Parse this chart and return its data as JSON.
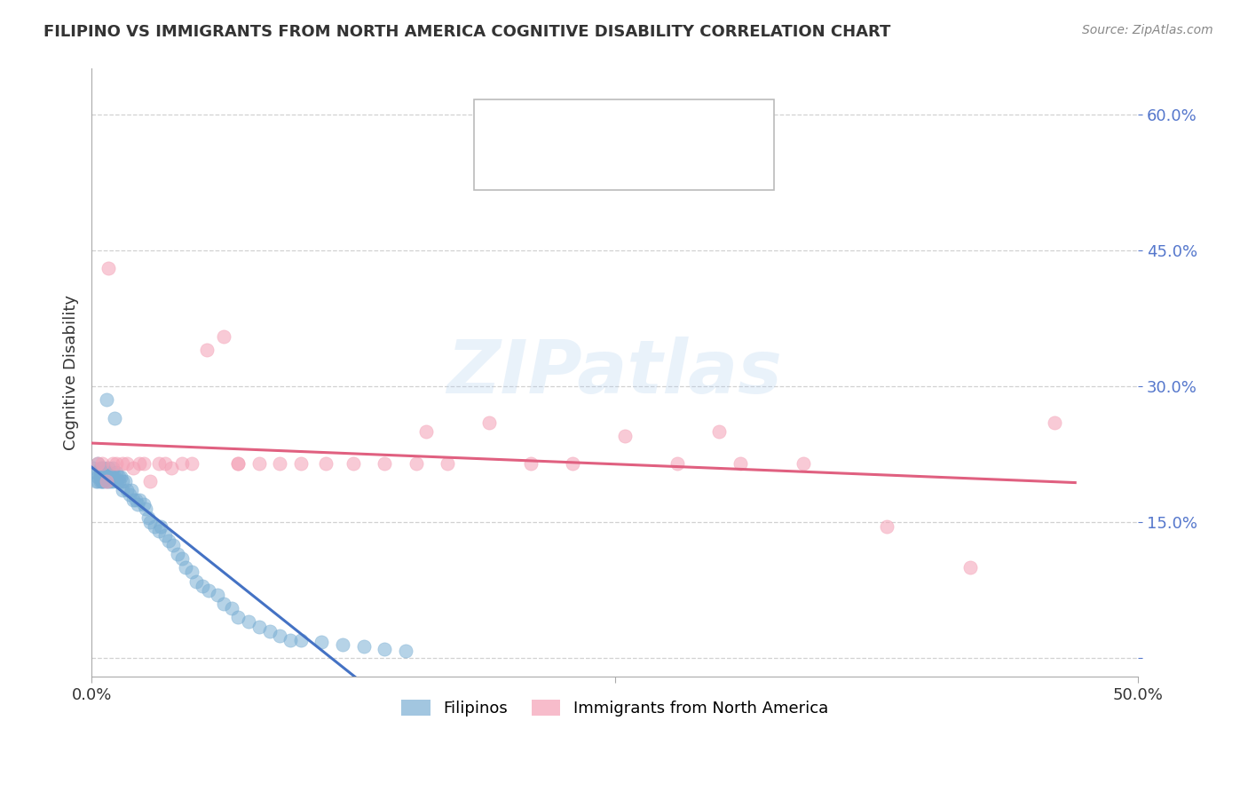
{
  "title": "FILIPINO VS IMMIGRANTS FROM NORTH AMERICA COGNITIVE DISABILITY CORRELATION CHART",
  "source": "Source: ZipAtlas.com",
  "ylabel": "Cognitive Disability",
  "y_ticks": [
    0.0,
    0.15,
    0.3,
    0.45,
    0.6
  ],
  "y_tick_labels": [
    "",
    "15.0%",
    "30.0%",
    "45.0%",
    "60.0%"
  ],
  "x_range": [
    0.0,
    0.5
  ],
  "y_range": [
    -0.02,
    0.65
  ],
  "legend_label1": "Filipinos",
  "legend_label2": "Immigrants from North America",
  "blue_color": "#7BAFD4",
  "pink_color": "#F4A0B5",
  "blue_line_color": "#4472C4",
  "pink_line_color": "#E06080",
  "filipinos_x": [
    0.001,
    0.002,
    0.002,
    0.003,
    0.003,
    0.003,
    0.004,
    0.004,
    0.004,
    0.004,
    0.005,
    0.005,
    0.005,
    0.005,
    0.005,
    0.006,
    0.006,
    0.006,
    0.006,
    0.007,
    0.007,
    0.007,
    0.007,
    0.008,
    0.008,
    0.008,
    0.009,
    0.009,
    0.009,
    0.01,
    0.01,
    0.01,
    0.011,
    0.011,
    0.012,
    0.012,
    0.013,
    0.013,
    0.014,
    0.015,
    0.015,
    0.016,
    0.017,
    0.018,
    0.019,
    0.02,
    0.021,
    0.022,
    0.023,
    0.025,
    0.026,
    0.027,
    0.028,
    0.03,
    0.032,
    0.033,
    0.035,
    0.037,
    0.039,
    0.041,
    0.043,
    0.045,
    0.048,
    0.05,
    0.053,
    0.056,
    0.06,
    0.063,
    0.067,
    0.07,
    0.075,
    0.08,
    0.085,
    0.09,
    0.095,
    0.1,
    0.11,
    0.12,
    0.13,
    0.14,
    0.15
  ],
  "filipinos_y": [
    0.21,
    0.195,
    0.205,
    0.2,
    0.195,
    0.215,
    0.205,
    0.195,
    0.2,
    0.21,
    0.195,
    0.2,
    0.205,
    0.21,
    0.195,
    0.2,
    0.195,
    0.205,
    0.21,
    0.2,
    0.285,
    0.195,
    0.205,
    0.2,
    0.195,
    0.21,
    0.2,
    0.195,
    0.2,
    0.195,
    0.2,
    0.21,
    0.2,
    0.265,
    0.195,
    0.205,
    0.2,
    0.195,
    0.2,
    0.195,
    0.185,
    0.195,
    0.185,
    0.18,
    0.185,
    0.175,
    0.175,
    0.17,
    0.175,
    0.17,
    0.165,
    0.155,
    0.15,
    0.145,
    0.14,
    0.145,
    0.135,
    0.13,
    0.125,
    0.115,
    0.11,
    0.1,
    0.095,
    0.085,
    0.08,
    0.075,
    0.07,
    0.06,
    0.055,
    0.045,
    0.04,
    0.035,
    0.03,
    0.025,
    0.02,
    0.02,
    0.018,
    0.015,
    0.013,
    0.01,
    0.008
  ],
  "immigrants_x": [
    0.003,
    0.005,
    0.007,
    0.008,
    0.01,
    0.012,
    0.015,
    0.017,
    0.02,
    0.023,
    0.025,
    0.028,
    0.032,
    0.035,
    0.038,
    0.043,
    0.048,
    0.055,
    0.063,
    0.07,
    0.08,
    0.09,
    0.1,
    0.112,
    0.125,
    0.14,
    0.155,
    0.17,
    0.19,
    0.21,
    0.23,
    0.255,
    0.28,
    0.31,
    0.34,
    0.38,
    0.42,
    0.46,
    0.16,
    0.3,
    0.07
  ],
  "immigrants_y": [
    0.215,
    0.215,
    0.195,
    0.43,
    0.215,
    0.215,
    0.215,
    0.215,
    0.21,
    0.215,
    0.215,
    0.195,
    0.215,
    0.215,
    0.21,
    0.215,
    0.215,
    0.34,
    0.355,
    0.215,
    0.215,
    0.215,
    0.215,
    0.215,
    0.215,
    0.215,
    0.215,
    0.215,
    0.26,
    0.215,
    0.215,
    0.245,
    0.215,
    0.215,
    0.215,
    0.145,
    0.1,
    0.26,
    0.25,
    0.25,
    0.215
  ]
}
